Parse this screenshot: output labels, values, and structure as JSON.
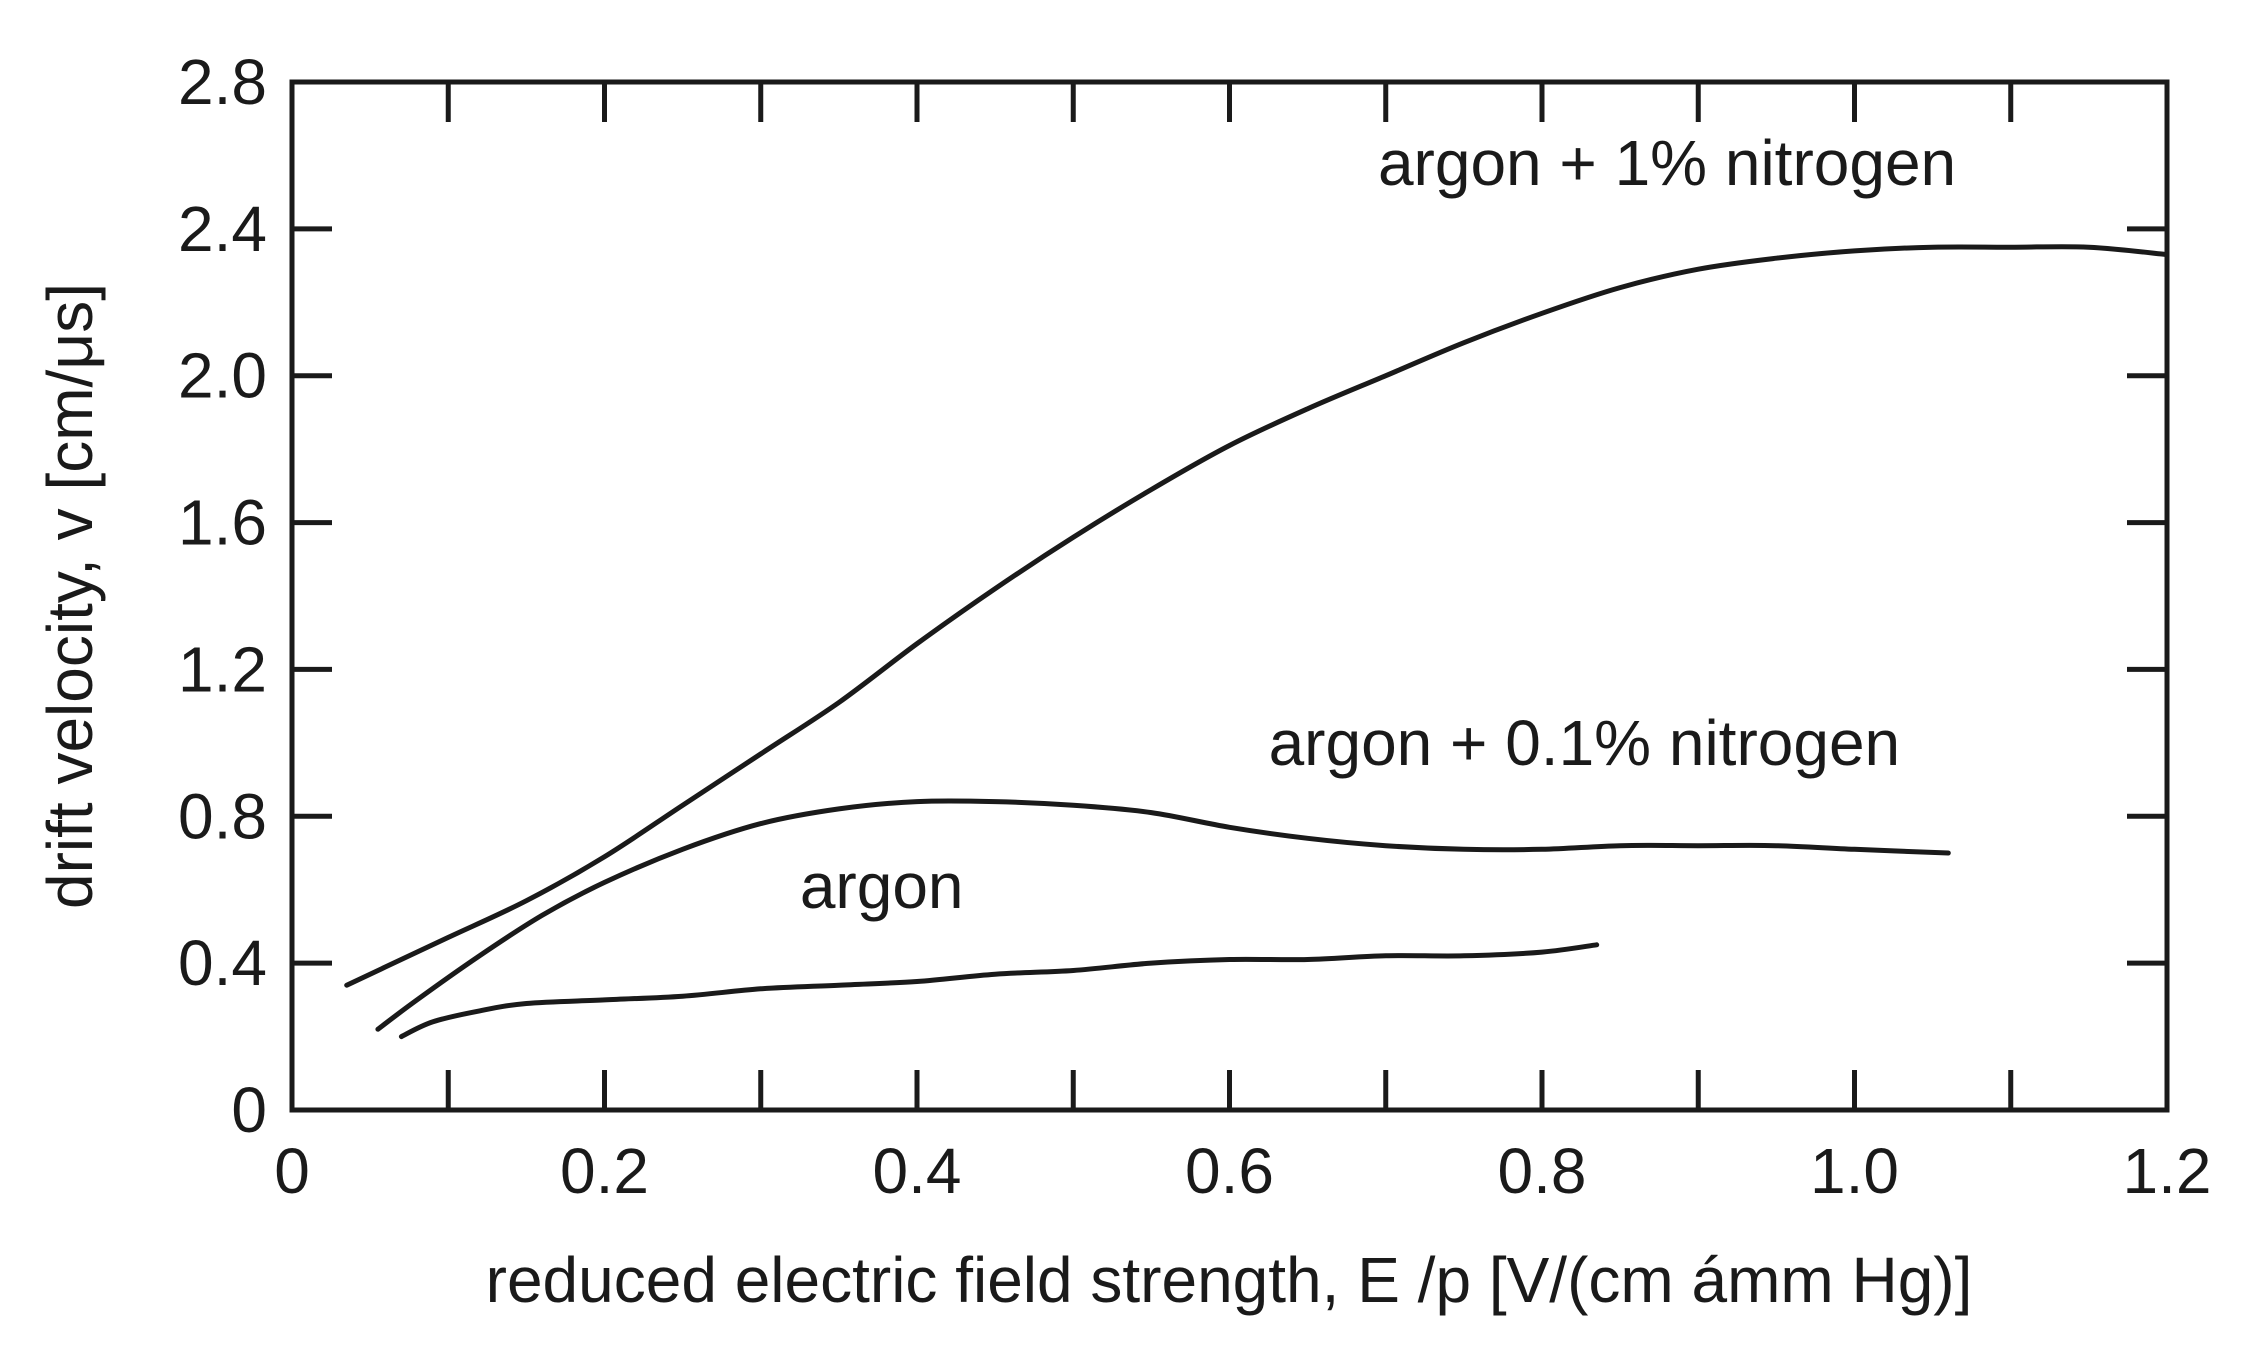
{
  "chart_data": {
    "type": "line",
    "title": "",
    "xlabel": "reduced electric field strength, E /p [V/(cm ámm Hg)]",
    "ylabel": "drift velocity, v [cm/μs]",
    "xlim": [
      0,
      1.2
    ],
    "ylim": [
      0,
      2.8
    ],
    "x_ticks": [
      "0",
      "0.2",
      "0.4",
      "0.6",
      "0.8",
      "1.0",
      "1.2"
    ],
    "x_tick_values": [
      0,
      0.2,
      0.4,
      0.6,
      0.8,
      1.0,
      1.2
    ],
    "y_ticks": [
      "0",
      "0.4",
      "0.8",
      "1.2",
      "1.6",
      "2.0",
      "2.4",
      "2.8"
    ],
    "y_tick_values": [
      0,
      0.4,
      0.8,
      1.2,
      1.6,
      2.0,
      2.4,
      2.8
    ],
    "grid": false,
    "legend": "none",
    "series": [
      {
        "name": "argon + 1% nitrogen",
        "points": [
          [
            0.035,
            0.34
          ],
          [
            0.06,
            0.39
          ],
          [
            0.1,
            0.47
          ],
          [
            0.15,
            0.57
          ],
          [
            0.2,
            0.69
          ],
          [
            0.25,
            0.83
          ],
          [
            0.3,
            0.97
          ],
          [
            0.35,
            1.11
          ],
          [
            0.4,
            1.27
          ],
          [
            0.45,
            1.42
          ],
          [
            0.5,
            1.56
          ],
          [
            0.55,
            1.69
          ],
          [
            0.6,
            1.81
          ],
          [
            0.65,
            1.91
          ],
          [
            0.7,
            2.0
          ],
          [
            0.75,
            2.09
          ],
          [
            0.8,
            2.17
          ],
          [
            0.85,
            2.24
          ],
          [
            0.9,
            2.29
          ],
          [
            0.95,
            2.32
          ],
          [
            1.0,
            2.34
          ],
          [
            1.05,
            2.35
          ],
          [
            1.1,
            2.35
          ],
          [
            1.15,
            2.35
          ],
          [
            1.2,
            2.33
          ]
        ]
      },
      {
        "name": "argon + 0.1% nitrogen",
        "points": [
          [
            0.055,
            0.22
          ],
          [
            0.08,
            0.3
          ],
          [
            0.12,
            0.42
          ],
          [
            0.16,
            0.53
          ],
          [
            0.2,
            0.62
          ],
          [
            0.25,
            0.71
          ],
          [
            0.3,
            0.78
          ],
          [
            0.35,
            0.82
          ],
          [
            0.4,
            0.84
          ],
          [
            0.45,
            0.84
          ],
          [
            0.5,
            0.83
          ],
          [
            0.55,
            0.81
          ],
          [
            0.6,
            0.77
          ],
          [
            0.65,
            0.74
          ],
          [
            0.7,
            0.72
          ],
          [
            0.75,
            0.71
          ],
          [
            0.8,
            0.71
          ],
          [
            0.85,
            0.72
          ],
          [
            0.9,
            0.72
          ],
          [
            0.95,
            0.72
          ],
          [
            1.0,
            0.71
          ],
          [
            1.06,
            0.7
          ]
        ]
      },
      {
        "name": "argon",
        "points": [
          [
            0.07,
            0.2
          ],
          [
            0.09,
            0.24
          ],
          [
            0.12,
            0.27
          ],
          [
            0.15,
            0.29
          ],
          [
            0.2,
            0.3
          ],
          [
            0.25,
            0.31
          ],
          [
            0.3,
            0.33
          ],
          [
            0.35,
            0.34
          ],
          [
            0.4,
            0.35
          ],
          [
            0.45,
            0.37
          ],
          [
            0.5,
            0.38
          ],
          [
            0.55,
            0.4
          ],
          [
            0.6,
            0.41
          ],
          [
            0.65,
            0.41
          ],
          [
            0.7,
            0.42
          ],
          [
            0.75,
            0.42
          ],
          [
            0.8,
            0.43
          ],
          [
            0.835,
            0.45
          ]
        ]
      }
    ],
    "annotations": [
      {
        "text": "argon + 1% nitrogen",
        "x": 0.695,
        "y": 2.52
      },
      {
        "text": "argon + 0.1% nitrogen",
        "x": 0.625,
        "y": 0.94
      },
      {
        "text": "argon",
        "x": 0.325,
        "y": 0.55
      }
    ]
  }
}
